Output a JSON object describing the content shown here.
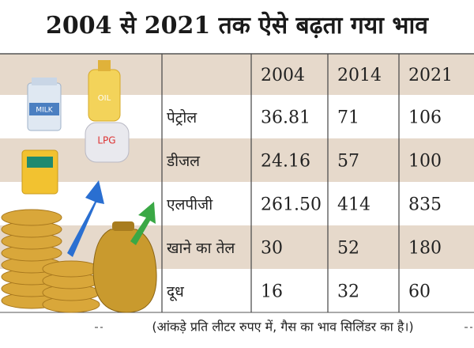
{
  "title": "2004 से 2021 तक ऐसे बढ़ता गया भाव",
  "table": {
    "header": [
      "2004",
      "2014",
      "2021"
    ],
    "rows": [
      [
        "पेट्रोल",
        "36.81",
        "71",
        "106"
      ],
      [
        "डीजल",
        "24.16",
        "57",
        "100"
      ],
      [
        "एलपीजी",
        "261.50",
        "414",
        "835"
      ],
      [
        "खाने का तेल",
        "30",
        "52",
        "180"
      ],
      [
        "दूध",
        "16",
        "32",
        "60"
      ]
    ]
  },
  "icons": {
    "milk": "MILK",
    "oil": "OIL",
    "lpg": "LPG"
  },
  "note": "(आंकड़े प्रति लीटर रुपए में, गैस का भाव सिलिंडर का है।)"
}
